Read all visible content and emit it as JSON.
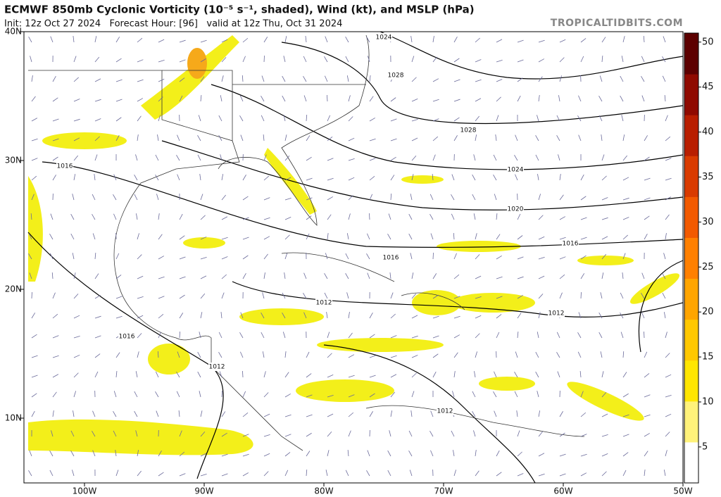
{
  "header": {
    "title": "ECMWF 850mb Cyclonic Vorticity (10⁻⁵ s⁻¹, shaded), Wind (kt), and MSLP (hPa)",
    "subtitle": "Init: 12z Oct 27 2024   Forecast Hour: [96]   valid at 12z Thu, Oct 31 2024",
    "source": "TROPICALTIDBITS.COM"
  },
  "map": {
    "lat_labels": [
      "40N",
      "30N",
      "20N",
      "10N"
    ],
    "lon_labels": [
      "100W",
      "90W",
      "80W",
      "70W",
      "60W",
      "50W"
    ],
    "isobar_labels": [
      "1024",
      "1028",
      "1028",
      "1024",
      "1020",
      "1016",
      "1016",
      "1016",
      "1012",
      "1012",
      "1016",
      "1012",
      "1012"
    ]
  },
  "colorbar": {
    "range": [
      1,
      51
    ],
    "ticks": [
      5,
      10,
      15,
      20,
      25,
      30,
      35,
      40,
      45,
      50
    ],
    "colors": [
      "#ffffff",
      "#fff27a",
      "#ffe600",
      "#ffc800",
      "#ffa500",
      "#ff8000",
      "#f25a00",
      "#d93b00",
      "#b81e00",
      "#8f0a00",
      "#5c0000"
    ]
  }
}
